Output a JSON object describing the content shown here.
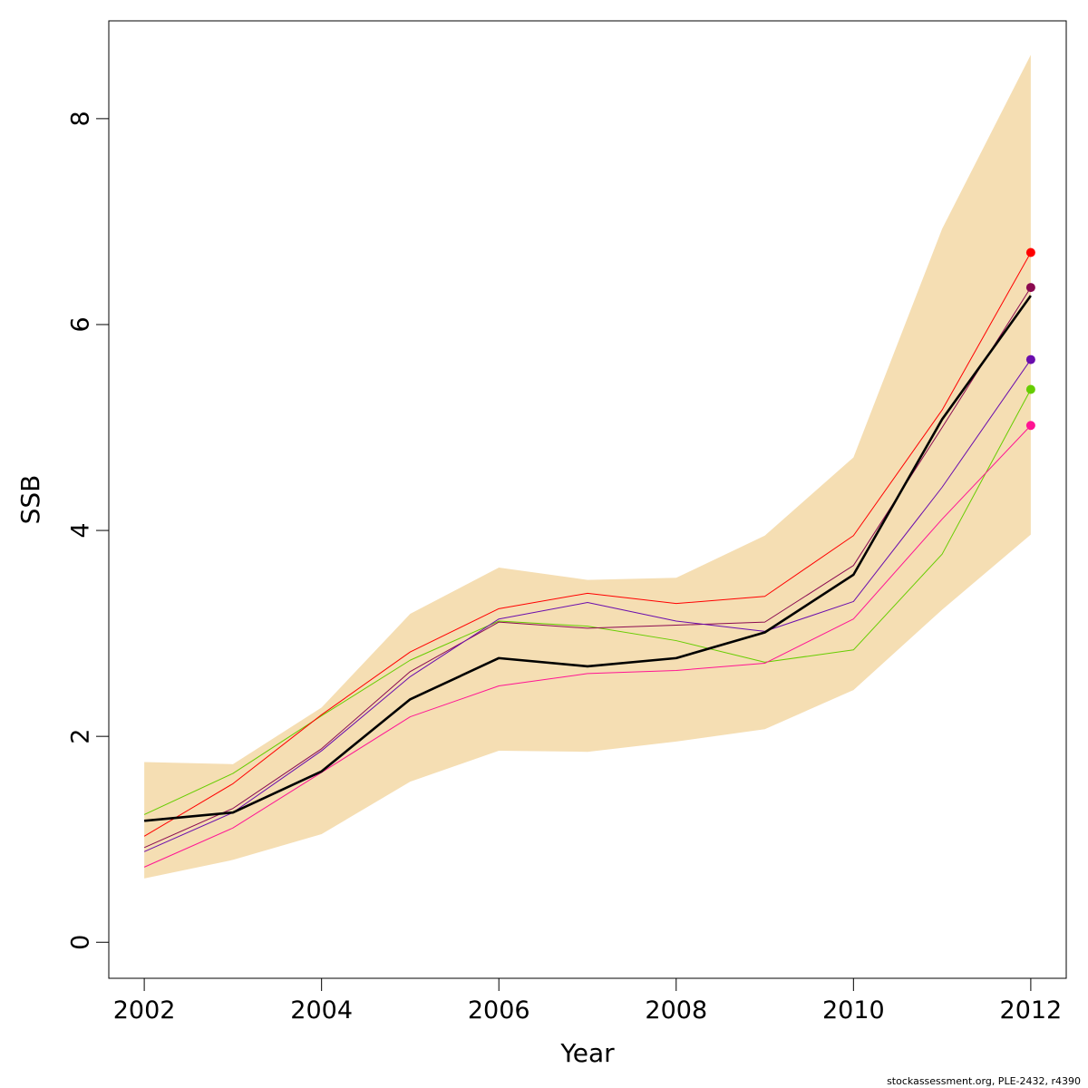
{
  "chart_data": {
    "type": "line",
    "xlabel": "Year",
    "ylabel": "SSB",
    "xlim": [
      2001.6,
      2012.4
    ],
    "ylim": [
      -0.35,
      8.95
    ],
    "x_ticks": [
      "2002",
      "2004",
      "2006",
      "2008",
      "2010",
      "2012"
    ],
    "y_ticks": [
      "0",
      "2",
      "4",
      "6",
      "8"
    ],
    "grid": false,
    "legend": "none",
    "x": [
      2002,
      2003,
      2004,
      2005,
      2006,
      2007,
      2008,
      2009,
      2010,
      2011,
      2012
    ],
    "band": {
      "color": "#f5deb3",
      "lower": [
        0.62,
        0.8,
        1.05,
        1.56,
        1.86,
        1.85,
        1.95,
        2.07,
        2.45,
        3.23,
        3.96
      ],
      "upper": [
        1.75,
        1.73,
        2.28,
        3.19,
        3.64,
        3.52,
        3.54,
        3.95,
        4.71,
        6.93,
        8.62
      ]
    },
    "series": [
      {
        "color": "#66cd00",
        "values": [
          1.24,
          1.64,
          2.2,
          2.74,
          3.12,
          3.07,
          2.93,
          2.72,
          2.84,
          3.77,
          5.37
        ]
      },
      {
        "color": "#ff1493",
        "values": [
          0.73,
          1.11,
          1.65,
          2.19,
          2.49,
          2.61,
          2.64,
          2.71,
          3.14,
          4.11,
          5.02
        ]
      },
      {
        "color": "#8b0a50",
        "values": [
          0.92,
          1.3,
          1.88,
          2.63,
          3.11,
          3.05,
          3.08,
          3.11,
          3.66,
          5.0,
          6.36
        ]
      },
      {
        "color": "#6a0dad",
        "values": [
          0.88,
          1.26,
          1.86,
          2.58,
          3.14,
          3.3,
          3.12,
          3.02,
          3.31,
          4.42,
          5.66
        ]
      },
      {
        "color": "#ff0000",
        "values": [
          1.03,
          1.54,
          2.21,
          2.82,
          3.24,
          3.39,
          3.29,
          3.36,
          3.95,
          5.17,
          6.7
        ]
      },
      {
        "color": "#000000",
        "values": [
          1.18,
          1.26,
          1.66,
          2.36,
          2.76,
          2.68,
          2.76,
          3.01,
          3.57,
          5.08,
          6.28
        ],
        "width": 2.6
      }
    ]
  },
  "credit": "stockassessment.org, PLE-2432, r4390"
}
